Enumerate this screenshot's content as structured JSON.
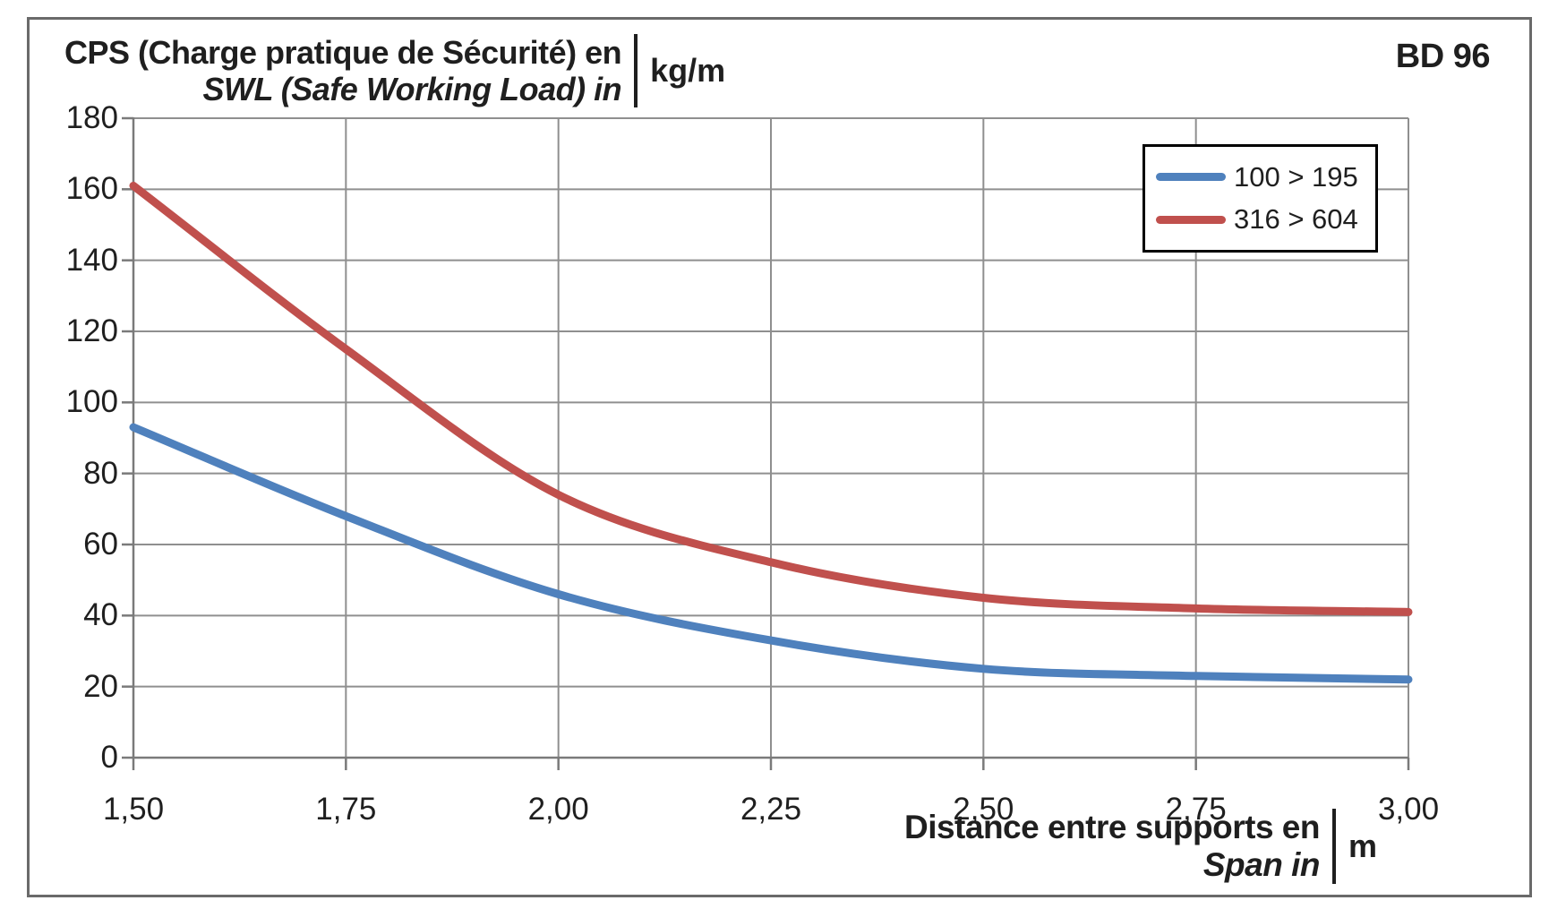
{
  "title_block": {
    "line1": "CPS (Charge pratique de Sécurité) en",
    "line2": "SWL (Safe Working Load) in",
    "unit": "kg/m"
  },
  "code_label": "BD 96",
  "x_axis_title": {
    "line1": "Distance entre supports en",
    "line2": "Span in",
    "unit": "m"
  },
  "chart_data": {
    "type": "line",
    "title": "CPS (Charge pratique de Sécurité) en / SWL (Safe Working Load) in kg/m",
    "xlabel": "Distance entre supports en / Span in m",
    "ylabel": "kg/m",
    "x": [
      1.5,
      1.75,
      2.0,
      2.25,
      2.5,
      2.75,
      3.0
    ],
    "x_tick_labels": [
      "1,50",
      "1,75",
      "2,00",
      "2,25",
      "2,50",
      "2,75",
      "3,00"
    ],
    "y_ticks": [
      0,
      20,
      40,
      60,
      80,
      100,
      120,
      140,
      160,
      180
    ],
    "xlim": [
      1.5,
      3.0
    ],
    "ylim": [
      0,
      180
    ],
    "grid": true,
    "legend_position": "top-right",
    "series": [
      {
        "name": "100 > 195",
        "color": "#4F81BD",
        "values": [
          93,
          68,
          46,
          33,
          25,
          23,
          22
        ]
      },
      {
        "name": "316 > 604",
        "color": "#C0504D",
        "values": [
          161,
          115,
          74,
          55,
          45,
          42,
          41
        ]
      }
    ],
    "colors": {
      "gridline": "#8f8f8f",
      "axis": "#7a7a7a",
      "text": "#1f1f1f",
      "legend_border": "#000000"
    }
  }
}
